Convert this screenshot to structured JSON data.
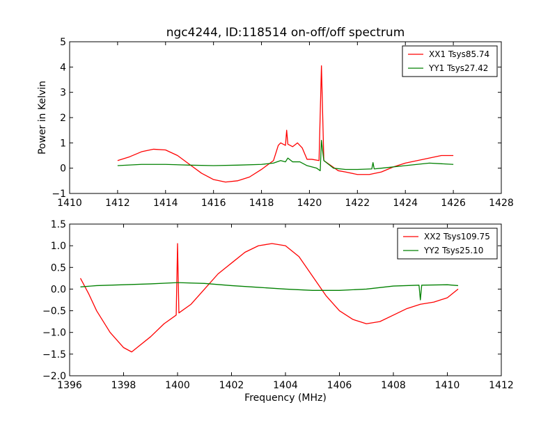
{
  "chart_data": [
    {
      "type": "line",
      "title": "ngc4244, ID:118514 on-off/off spectrum",
      "xlabel": "",
      "ylabel": "Power in Kelvin",
      "xlim": [
        1410,
        1428
      ],
      "ylim": [
        -1,
        5
      ],
      "xticks": [
        1410,
        1412,
        1414,
        1416,
        1418,
        1420,
        1422,
        1424,
        1426,
        1428
      ],
      "yticks": [
        -1,
        0,
        1,
        2,
        3,
        4,
        5
      ],
      "xtick_labels": [
        "1410",
        "1412",
        "1414",
        "1416",
        "1418",
        "1420",
        "1422",
        "1424",
        "1426",
        "1428"
      ],
      "ytick_labels": [
        "−1",
        "0",
        "1",
        "2",
        "3",
        "4",
        "5"
      ],
      "grid": false,
      "legend": "top-right",
      "series": [
        {
          "name": "XX1 Tsys85.74",
          "color": "#ff0000",
          "x": [
            1412.0,
            1412.5,
            1413.0,
            1413.5,
            1414.0,
            1414.5,
            1415.0,
            1415.5,
            1416.0,
            1416.5,
            1417.0,
            1417.5,
            1418.0,
            1418.5,
            1418.7,
            1418.8,
            1419.0,
            1419.05,
            1419.1,
            1419.3,
            1419.5,
            1419.7,
            1419.9,
            1420.1,
            1420.4,
            1420.5,
            1420.6,
            1420.9,
            1421.2,
            1421.5,
            1422.0,
            1422.5,
            1423.0,
            1423.5,
            1424.0,
            1424.5,
            1425.0,
            1425.5,
            1426.0
          ],
          "y": [
            0.3,
            0.45,
            0.65,
            0.75,
            0.72,
            0.5,
            0.15,
            -0.2,
            -0.45,
            -0.55,
            -0.5,
            -0.35,
            -0.05,
            0.3,
            0.9,
            1.0,
            0.9,
            1.5,
            0.95,
            0.85,
            1.0,
            0.8,
            0.35,
            0.35,
            0.3,
            4.05,
            0.3,
            0.1,
            -0.1,
            -0.15,
            -0.25,
            -0.25,
            -0.15,
            0.05,
            0.2,
            0.3,
            0.4,
            0.5,
            0.5
          ]
        },
        {
          "name": "YY1 Tsys27.42",
          "color": "#008000",
          "x": [
            1412.0,
            1413.0,
            1414.0,
            1415.0,
            1416.0,
            1417.0,
            1418.0,
            1418.5,
            1418.8,
            1419.0,
            1419.1,
            1419.3,
            1419.6,
            1419.9,
            1420.3,
            1420.45,
            1420.5,
            1420.6,
            1421.0,
            1421.5,
            1422.0,
            1422.6,
            1422.65,
            1422.7,
            1423.0,
            1424.0,
            1425.0,
            1426.0
          ],
          "y": [
            0.1,
            0.15,
            0.15,
            0.12,
            0.1,
            0.12,
            0.15,
            0.2,
            0.3,
            0.25,
            0.4,
            0.25,
            0.25,
            0.1,
            0.0,
            -0.1,
            1.1,
            0.3,
            0.0,
            -0.05,
            -0.05,
            -0.03,
            0.22,
            -0.03,
            0.0,
            0.1,
            0.2,
            0.15
          ]
        }
      ]
    },
    {
      "type": "line",
      "title": "",
      "xlabel": "Frequency (MHz)",
      "ylabel": "",
      "xlim": [
        1396,
        1412
      ],
      "ylim": [
        -2,
        1.5
      ],
      "xticks": [
        1396,
        1398,
        1400,
        1402,
        1404,
        1406,
        1408,
        1410,
        1412
      ],
      "yticks": [
        -2.0,
        -1.5,
        -1.0,
        -0.5,
        0.0,
        0.5,
        1.0,
        1.5
      ],
      "xtick_labels": [
        "1396",
        "1398",
        "1400",
        "1402",
        "1404",
        "1406",
        "1408",
        "1410",
        "1412"
      ],
      "ytick_labels": [
        "−2.0",
        "−1.5",
        "−1.0",
        "−0.5",
        "0.0",
        "0.5",
        "1.0",
        "1.5"
      ],
      "grid": false,
      "legend": "top-right",
      "series": [
        {
          "name": "XX2 Tsys109.75",
          "color": "#ff0000",
          "x": [
            1396.4,
            1396.7,
            1397.0,
            1397.5,
            1398.0,
            1398.3,
            1398.6,
            1399.0,
            1399.5,
            1399.95,
            1400.0,
            1400.05,
            1400.5,
            1401.0,
            1401.5,
            1402.0,
            1402.5,
            1403.0,
            1403.5,
            1404.0,
            1404.5,
            1405.0,
            1405.5,
            1406.0,
            1406.5,
            1407.0,
            1407.5,
            1408.0,
            1408.5,
            1409.0,
            1409.5,
            1410.0,
            1410.4
          ],
          "y": [
            0.25,
            -0.1,
            -0.5,
            -1.0,
            -1.35,
            -1.45,
            -1.3,
            -1.1,
            -0.8,
            -0.6,
            1.05,
            -0.55,
            -0.35,
            0.0,
            0.35,
            0.6,
            0.85,
            1.0,
            1.05,
            1.0,
            0.75,
            0.3,
            -0.15,
            -0.5,
            -0.7,
            -0.8,
            -0.75,
            -0.6,
            -0.45,
            -0.35,
            -0.3,
            -0.2,
            0.0
          ]
        },
        {
          "name": "YY2 Tsys25.10",
          "color": "#008000",
          "x": [
            1396.4,
            1397.0,
            1398.0,
            1399.0,
            1400.0,
            1401.0,
            1402.0,
            1403.0,
            1404.0,
            1405.0,
            1406.0,
            1407.0,
            1408.0,
            1408.95,
            1409.0,
            1409.05,
            1410.0,
            1410.4
          ],
          "y": [
            0.05,
            0.08,
            0.1,
            0.12,
            0.15,
            0.13,
            0.08,
            0.04,
            0.0,
            -0.03,
            -0.03,
            0.0,
            0.07,
            0.09,
            -0.25,
            0.09,
            0.1,
            0.08
          ]
        }
      ]
    }
  ]
}
